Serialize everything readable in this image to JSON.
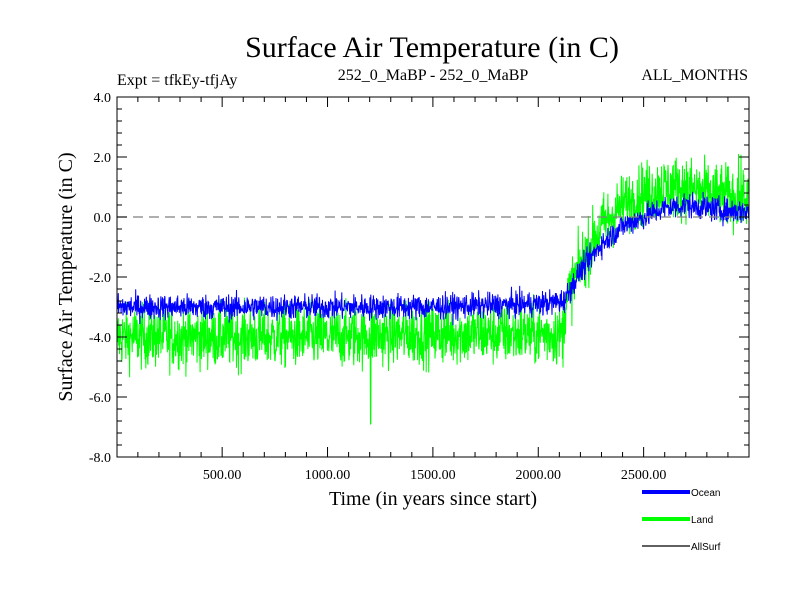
{
  "chart_data": {
    "type": "line",
    "title": "Surface Air Temperature (in C)",
    "subtitle_left": "Expt = tfkEy-tfjAy",
    "subtitle_center": "252_0_MaBP - 252_0_MaBP",
    "subtitle_right": "ALL_MONTHS",
    "xlabel": "Time (in years since start)",
    "ylabel": "Surface Air Temperature (in C)",
    "xlim": [
      1,
      3000
    ],
    "ylim": [
      -8.0,
      4.0
    ],
    "x_ticks": [
      500,
      1000,
      1500,
      2000,
      2500
    ],
    "x_tick_labels": [
      "500.00",
      "1000.00",
      "1500.00",
      "2000.00",
      "2500.00"
    ],
    "y_ticks": [
      4,
      2,
      0,
      -2,
      -4,
      -6,
      -8
    ],
    "y_tick_labels": [
      "4.0",
      "2.0",
      "0.0",
      "-2.0",
      "-4.0",
      "-6.0",
      "-8.0"
    ],
    "reference_line": {
      "y": 0.0,
      "style": "dashed",
      "color": "#7f7f7f"
    },
    "grid": false,
    "legend_position": "bottom-right",
    "series": [
      {
        "name": "Land",
        "color": "#00ff00",
        "mean_trend": {
          "x": [
            1,
            500,
            1000,
            1500,
            2000,
            2120,
            2130,
            2200,
            2300,
            2400,
            2500,
            2600,
            2700,
            2800,
            2900,
            3000
          ],
          "y": [
            -4.0,
            -4.0,
            -4.0,
            -3.9,
            -3.9,
            -3.9,
            -2.8,
            -1.6,
            -0.3,
            0.4,
            0.8,
            1.0,
            1.0,
            0.8,
            0.7,
            0.6
          ]
        },
        "noise_amplitude": 1.1,
        "extremes": {
          "min": -6.9,
          "min_x": 1205,
          "max": 2.1,
          "max_x": 2950
        }
      },
      {
        "name": "Ocean",
        "color": "#0000ff",
        "mean_trend": {
          "x": [
            1,
            500,
            1000,
            1500,
            2000,
            2120,
            2200,
            2300,
            2400,
            2500,
            2600,
            2700,
            2800,
            2900,
            3000
          ],
          "y": [
            -3.0,
            -3.0,
            -3.0,
            -3.0,
            -2.9,
            -2.8,
            -1.8,
            -0.9,
            -0.3,
            0.0,
            0.3,
            0.4,
            0.3,
            0.2,
            0.2
          ]
        },
        "noise_amplitude": 0.45
      },
      {
        "name": "AllSurf",
        "color": "#000000",
        "mean_trend": {
          "x": [],
          "y": []
        }
      }
    ]
  }
}
